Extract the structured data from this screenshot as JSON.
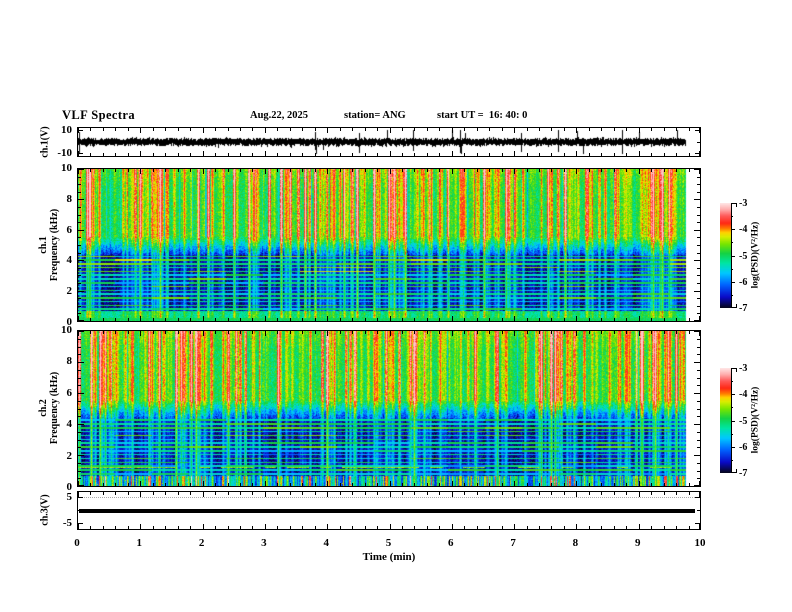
{
  "header": {
    "title": "VLF Spectra",
    "date": "Aug.22, 2025",
    "station": "station= ANG",
    "start_ut": "start UT =  16: 40: 0"
  },
  "xaxis": {
    "label": "Time (min)",
    "tick_labels": [
      "0",
      "1",
      "2",
      "3",
      "4",
      "5",
      "6",
      "7",
      "8",
      "9",
      "10"
    ],
    "range_min": [
      0,
      10
    ]
  },
  "panels": {
    "ch1_wave": {
      "ylabel": "ch.1(V)",
      "ytick_labels": [
        "10",
        "-10"
      ],
      "yrange": [
        -10,
        10
      ]
    },
    "spec1": {
      "ylabel_lines": [
        "ch.1",
        "Frequency (kHz)"
      ],
      "ytick_labels": [
        "10",
        "8",
        "6",
        "4",
        "2",
        "0"
      ],
      "yrange_khz": [
        0,
        10
      ]
    },
    "spec2": {
      "ylabel_lines": [
        "ch.2",
        "Frequency (kHz)"
      ],
      "ytick_labels": [
        "10",
        "8",
        "6",
        "4",
        "2",
        "0"
      ],
      "yrange_khz": [
        0,
        10
      ]
    },
    "ch3": {
      "ylabel": "ch.3(V)",
      "ytick_labels": [
        "5",
        "-5"
      ],
      "yrange": [
        -5,
        5
      ]
    }
  },
  "colorbar": {
    "label": "log(PSD)(V²/Hz)",
    "tick_labels": [
      "-3",
      "-4",
      "-5",
      "-6",
      "-7"
    ],
    "range": [
      -7,
      -3
    ]
  },
  "chart_data": [
    {
      "type": "line",
      "name": "ch.1(V) time series",
      "xlabel": "Time (min)",
      "xlim": [
        0,
        10
      ],
      "ylim": [
        -10,
        10
      ],
      "description": "Dense black noise waveform centered on 0 V, typical amplitude about ±2 V, with frequent impulsive sferic spikes reaching roughly ±9 V; data extends from 0 to ~9.85 min."
    },
    {
      "type": "heatmap",
      "name": "ch.1 VLF spectrogram",
      "xlabel": "Time (min)",
      "ylabel": "Frequency (kHz)",
      "xlim": [
        0,
        10
      ],
      "ylim": [
        0,
        10
      ],
      "zlim": [
        -7,
        -3
      ],
      "z_label": "log(PSD)(V²/Hz)",
      "colormap_stops": [
        [
          0.0,
          "#060620"
        ],
        [
          0.1,
          "#0a0ac8"
        ],
        [
          0.22,
          "#0064ff"
        ],
        [
          0.33,
          "#00c8ff"
        ],
        [
          0.43,
          "#00e6a0"
        ],
        [
          0.52,
          "#14d244"
        ],
        [
          0.61,
          "#78e600"
        ],
        [
          0.68,
          "#d7ee00"
        ],
        [
          0.72,
          "#ffd200"
        ],
        [
          0.76,
          "#ff7800"
        ],
        [
          0.81,
          "#ff2814"
        ],
        [
          0.88,
          "#ff5a5a"
        ],
        [
          0.94,
          "#ffaaaa"
        ],
        [
          1.0,
          "#ffe4e4"
        ]
      ],
      "features": [
        "Above ~5.5 kHz: green background (~-5) with dense vertical sferic streaks reaching yellow/red/pink (-4 to -3)",
        "4.3-5.5 kHz: mottled cyan/blue transition band",
        "0.6-4.3 kHz: very dark blue/black background (~-6.8) crossed by narrow horizontal cyan/green power-line harmonic lines every ~0.25 kHz and thin vertical green streaks",
        "0-0.6 kHz: bright green/cyan band"
      ]
    },
    {
      "type": "heatmap",
      "name": "ch.2 VLF spectrogram",
      "xlabel": "Time (min)",
      "ylabel": "Frequency (kHz)",
      "xlim": [
        0,
        10
      ],
      "ylim": [
        0,
        10
      ],
      "zlim": [
        -7,
        -3
      ],
      "z_label": "log(PSD)(V²/Hz)",
      "features": [
        "Same structure as ch.1 spectrogram",
        "Bottom 0-0.6 kHz band more mottled dark/cyan with spiky vertical bursts",
        "Intermittent orange/red horizontal line near ~1.2 kHz, mostly in the left portion"
      ]
    },
    {
      "type": "line",
      "name": "ch.3(V) time series",
      "xlabel": "Time (min)",
      "xlim": [
        0,
        10
      ],
      "ylim": [
        -5,
        5
      ],
      "description": "Thick constant black line at ~0 V across the full record."
    }
  ]
}
